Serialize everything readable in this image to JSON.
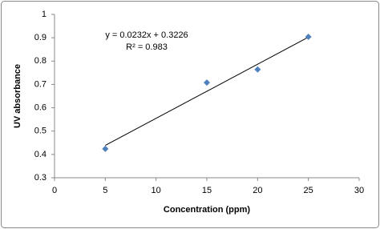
{
  "chart_data": {
    "type": "scatter",
    "x_label": "Concentration (ppm)",
    "y_label": "UV absorbance",
    "series": [
      {
        "name": "UV absorbance",
        "color": "#4f81bd",
        "x": [
          5,
          15,
          20,
          25
        ],
        "values": [
          0.424,
          0.708,
          0.764,
          0.904
        ]
      }
    ],
    "trendline": {
      "equation": "y = 0.0232x + 0.3226",
      "r2": "R² = 0.983",
      "color": "#000000",
      "x": [
        5,
        25
      ],
      "values": [
        0.4386,
        0.9026
      ]
    },
    "xlim": [
      0,
      30
    ],
    "xticks": [
      0,
      5,
      10,
      15,
      20,
      25,
      30
    ],
    "ylim": [
      0.3,
      1
    ],
    "yticks": [
      0.3,
      0.4,
      0.5,
      0.6,
      0.7,
      0.8,
      0.9,
      1
    ],
    "grid": false
  }
}
